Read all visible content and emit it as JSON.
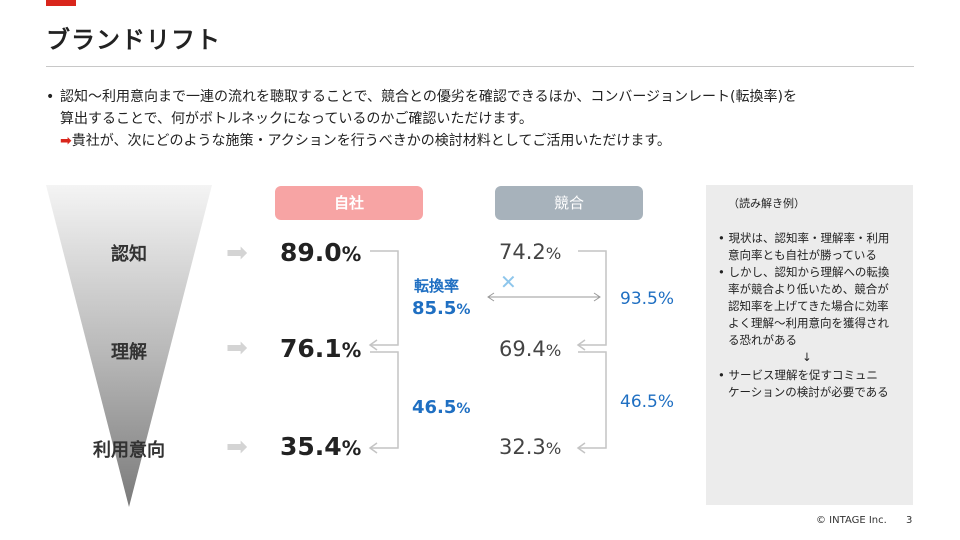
{
  "title": "ブランドリフト",
  "bullet": {
    "marker": "•",
    "line1": "認知〜利用意向まで一連の流れを聴取することで、競合との優劣を確認できるほか、コンバージョンレート(転換率)を",
    "line2": "算出することで、何がボトルネックになっているのかご確認いただけます。",
    "arrow": "➡",
    "line3": "貴社が、次にどのような施策・アクションを行うべきかの検討材料としてご活用いただけます。"
  },
  "stages": [
    {
      "label": "認知",
      "self": "89.0",
      "comp": "74.2"
    },
    {
      "label": "理解",
      "self": "76.1",
      "comp": "69.4"
    },
    {
      "label": "利用意向",
      "self": "35.4",
      "comp": "32.3"
    }
  ],
  "unit": "%",
  "headers": {
    "self": "自社",
    "comp": "競合"
  },
  "conversion": {
    "label": "転換率",
    "self_1": "85.5",
    "self_2": "46.5",
    "comp_1": "93.5",
    "comp_2": "46.5",
    "cross": "✕"
  },
  "note": {
    "title": "（読み解き例）",
    "lines": [
      "• 現状は、認知率・理解率・利用",
      "意向率とも自社が勝っている",
      "• しかし、認知から理解への転換",
      "率が競合より低いため、競合が",
      "認知率を上げてきた場合に効率",
      "よく理解〜利用意向を獲得され",
      "る恐れがある",
      "↓",
      "• サービス理解を促すコミュニ",
      "ケーションの検討が必要である"
    ]
  },
  "footer": {
    "copyright": "© INTAGE Inc.",
    "page": "3"
  },
  "colors": {
    "accent": "#d9261c",
    "self_pill": "#f7a4a4",
    "comp_pill": "#a7b2bb",
    "blue": "#1f6fc2",
    "note_bg": "#ececec"
  }
}
